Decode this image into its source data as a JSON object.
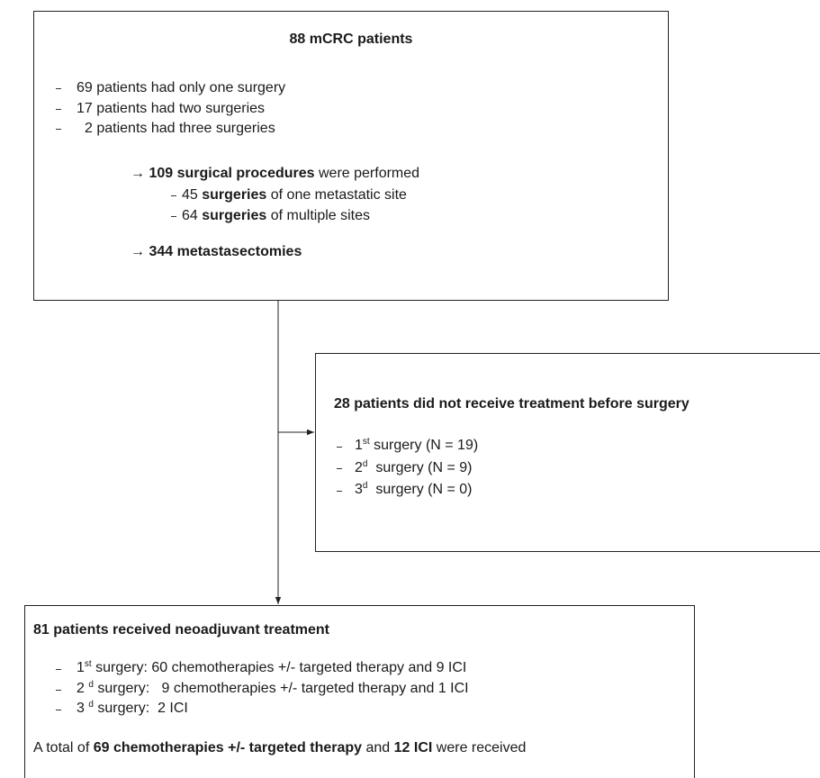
{
  "top_box": {
    "title": "88 mCRC patients",
    "surgery_counts": [
      "69 patients had only one surgery",
      "17 patients had two surgeries",
      "2 patients had three surgeries"
    ],
    "procedures": {
      "arrow": "→",
      "bold": "109 surgical procedures",
      "rest": "were performed"
    },
    "procedure_types": [
      {
        "count": "45",
        "bold": "surgeries",
        "rest": "of one metastatic site"
      },
      {
        "count": "64",
        "bold": "surgeries",
        "rest": "of multiple sites"
      }
    ],
    "metastasectomies": {
      "arrow": "→",
      "bold": "344 metastasectomies"
    }
  },
  "right_box": {
    "title": "28 patients did not receive treatment before surgery",
    "items": [
      {
        "ordinal": "1",
        "suffix": "st",
        "text": "surgery (N = 19)"
      },
      {
        "ordinal": "2",
        "suffix": "d",
        "text": "surgery (N = 9)"
      },
      {
        "ordinal": "3",
        "suffix": "d",
        "text": "surgery (N = 0)"
      }
    ]
  },
  "bottom_box": {
    "title": "81 patients received neoadjuvant treatment",
    "items": [
      {
        "ordinal": "1",
        "suffix": "st",
        "text": "surgery: 60 chemotherapies +/- targeted therapy and 9 ICI"
      },
      {
        "ordinal": "2",
        "suffix": "d",
        "text": "surgery:   9 chemotherapies +/- targeted therapy and 1 ICI"
      },
      {
        "ordinal": "3",
        "suffix": "d",
        "text": "surgery:  2 ICI"
      }
    ],
    "total": [
      "A total of",
      "69 chemotherapies +/- targeted therapy",
      "and",
      "12 ICI",
      "were received"
    ]
  }
}
